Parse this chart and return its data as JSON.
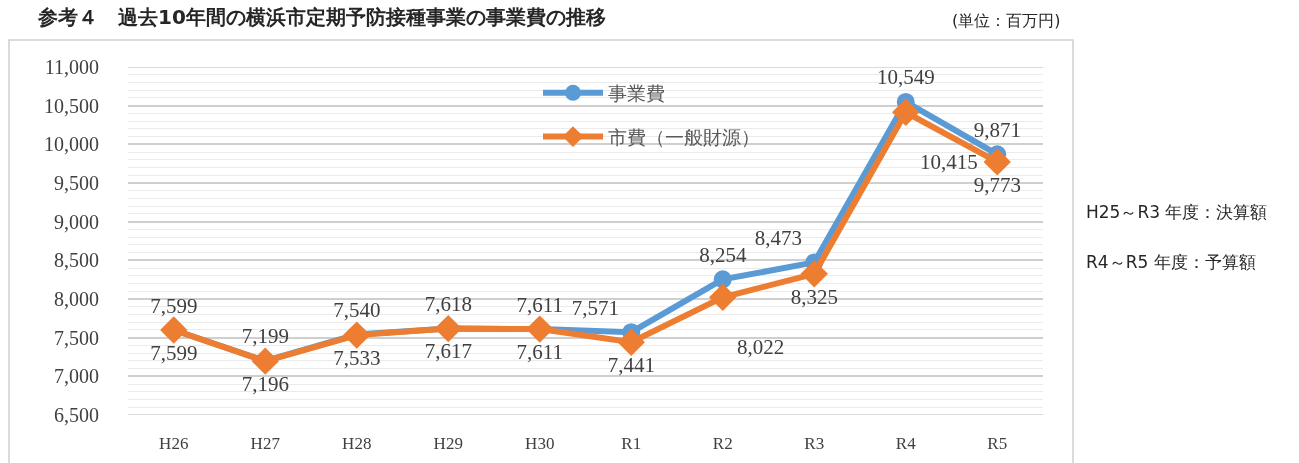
{
  "chart_data": {
    "type": "line",
    "title": "参考４　過去10年間の横浜市定期予防接種事業の事業費の推移",
    "annotations": [
      "(単位：百万円)",
      "H25～R3 年度：決算額",
      "R4～R5 年度：予算額"
    ],
    "categories": [
      "H26",
      "H27",
      "H28",
      "H29",
      "H30",
      "R1",
      "R2",
      "R3",
      "R4",
      "R5"
    ],
    "series": [
      {
        "name": "事業費",
        "color": "#5b9bd5",
        "marker": "circle",
        "values": [
          7599,
          7199,
          7540,
          7618,
          7611,
          7571,
          8254,
          8473,
          10549,
          9871
        ],
        "value_labels": [
          "7,599",
          "7,199",
          "7,540",
          "7,618",
          "7,611",
          "7,571",
          "8,254",
          "8,473",
          "10,549",
          "9,871"
        ]
      },
      {
        "name": "市費（一般財源）",
        "color": "#ed7d31",
        "marker": "diamond",
        "values": [
          7599,
          7196,
          7533,
          7617,
          7611,
          7441,
          8022,
          8325,
          10415,
          9773
        ],
        "value_labels": [
          "7,599",
          "7,196",
          "7,533",
          "7,617",
          "7,611",
          "7,441",
          "8,022",
          "8,325",
          "10,415",
          "9,773"
        ]
      }
    ],
    "ylim": [
      6500,
      11000
    ],
    "yticks": [
      {
        "value": 6500,
        "label": "6,500"
      },
      {
        "value": 6600,
        "label": null
      },
      {
        "value": 6700,
        "label": null
      },
      {
        "value": 6800,
        "label": null
      },
      {
        "value": 6900,
        "label": null
      },
      {
        "value": 7000,
        "label": "7,000"
      },
      {
        "value": 7100,
        "label": null
      },
      {
        "value": 7200,
        "label": null
      },
      {
        "value": 7300,
        "label": null
      },
      {
        "value": 7400,
        "label": null
      },
      {
        "value": 7500,
        "label": "7,500"
      },
      {
        "value": 7600,
        "label": null
      },
      {
        "value": 7700,
        "label": null
      },
      {
        "value": 7800,
        "label": null
      },
      {
        "value": 7900,
        "label": null
      },
      {
        "value": 8000,
        "label": "8,000"
      },
      {
        "value": 8100,
        "label": null
      },
      {
        "value": 8200,
        "label": null
      },
      {
        "value": 8300,
        "label": null
      },
      {
        "value": 8400,
        "label": null
      },
      {
        "value": 8500,
        "label": "8,500"
      },
      {
        "value": 8600,
        "label": null
      },
      {
        "value": 8700,
        "label": null
      },
      {
        "value": 8800,
        "label": null
      },
      {
        "value": 8900,
        "label": null
      },
      {
        "value": 9000,
        "label": "9,000"
      },
      {
        "value": 9100,
        "label": null
      },
      {
        "value": 9200,
        "label": null
      },
      {
        "value": 9300,
        "label": null
      },
      {
        "value": 9400,
        "label": null
      },
      {
        "value": 9500,
        "label": "9,500"
      },
      {
        "value": 9600,
        "label": null
      },
      {
        "value": 9700,
        "label": null
      },
      {
        "value": 9800,
        "label": null
      },
      {
        "value": 9900,
        "label": null
      },
      {
        "value": 10000,
        "label": "10,000"
      },
      {
        "value": 10100,
        "label": null
      },
      {
        "value": 10200,
        "label": null
      },
      {
        "value": 10300,
        "label": null
      },
      {
        "value": 10400,
        "label": null
      },
      {
        "value": 10500,
        "label": "10,500"
      },
      {
        "value": 10600,
        "label": null
      },
      {
        "value": 10700,
        "label": null
      },
      {
        "value": 10800,
        "label": null
      },
      {
        "value": 10900,
        "label": null
      },
      {
        "value": 11000,
        "label": "11,000"
      }
    ],
    "grid": "y",
    "legend": "top"
  }
}
